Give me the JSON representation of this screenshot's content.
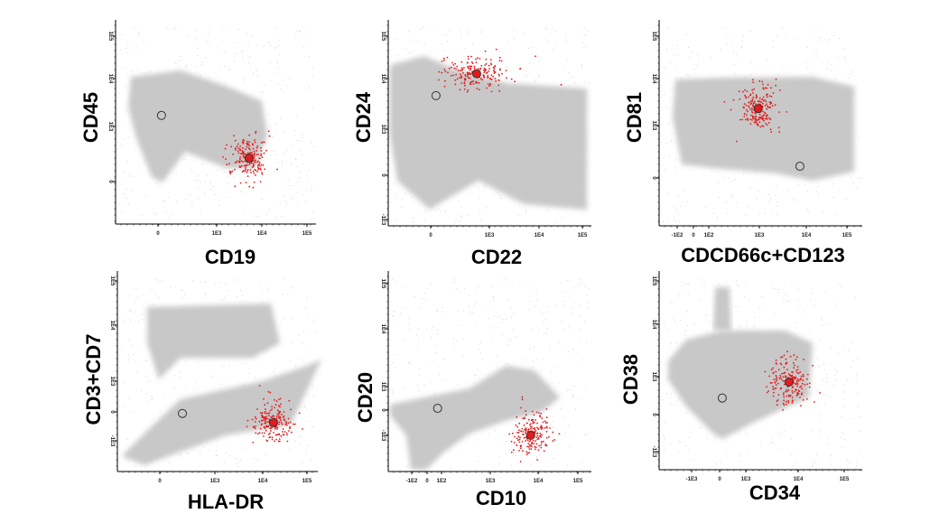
{
  "colors": {
    "background_population": "#c8c8c8",
    "target_population": "#e41a1c",
    "median_marker": "#333333"
  },
  "chart_data": [
    {
      "type": "scatter",
      "xlabel": "CD19",
      "ylabel": "CD45",
      "scale": "logicle",
      "x_ticks": [
        {
          "label": "0",
          "value": 0
        },
        {
          "label": "1E3",
          "value": 1000
        },
        {
          "label": "1E4",
          "value": 10000
        },
        {
          "label": "1E5",
          "value": 100000
        }
      ],
      "y_ticks": [
        {
          "label": "0",
          "value": 0
        },
        {
          "label": "1E3",
          "value": 1000
        },
        {
          "label": "1E4",
          "value": 10000
        },
        {
          "label": "1E5",
          "value": 100000
        }
      ],
      "background_median": {
        "x": 11,
        "y": 1700
      },
      "target_centroid": {
        "x": 5200,
        "y": 115
      }
    },
    {
      "type": "scatter",
      "xlabel": "CD22",
      "ylabel": "CD24",
      "scale": "logicle",
      "x_ticks": [
        {
          "label": "0",
          "value": 0
        },
        {
          "label": "1E3",
          "value": 1000
        },
        {
          "label": "1E4",
          "value": 10000
        },
        {
          "label": "1E5",
          "value": 100000
        }
      ],
      "y_ticks": [
        {
          "label": "-1E3",
          "value": -1000
        },
        {
          "label": "0",
          "value": 0
        },
        {
          "label": "1E3",
          "value": 1000
        },
        {
          "label": "1E4",
          "value": 10000
        },
        {
          "label": "1E5",
          "value": 100000
        }
      ],
      "background_median": {
        "x": 17,
        "y": 4600
      },
      "target_centroid": {
        "x": 450,
        "y": 13000
      }
    },
    {
      "type": "scatter",
      "xlabel": "CDCD66c+CD123",
      "ylabel": "CD81",
      "scale": "logicle",
      "x_ticks": [
        {
          "label": "-1E2",
          "value": -100
        },
        {
          "label": "0",
          "value": 0
        },
        {
          "label": "1E2",
          "value": 100
        },
        {
          "label": "1E3",
          "value": 1000
        },
        {
          "label": "1E4",
          "value": 10000
        },
        {
          "label": "1E5",
          "value": 100000
        }
      ],
      "y_ticks": [
        {
          "label": "0",
          "value": 0
        },
        {
          "label": "1E3",
          "value": 1000
        },
        {
          "label": "1E4",
          "value": 10000
        },
        {
          "label": "1E5",
          "value": 100000
        }
      ],
      "background_median": {
        "x": 7300,
        "y": 46
      },
      "target_centroid": {
        "x": 950,
        "y": 2300
      }
    },
    {
      "type": "scatter",
      "xlabel": "HLA-DR",
      "ylabel": "CD3+CD7",
      "scale": "logicle",
      "x_ticks": [
        {
          "label": "0",
          "value": 0
        },
        {
          "label": "1E3",
          "value": 1000
        },
        {
          "label": "1E4",
          "value": 10000
        },
        {
          "label": "1E5",
          "value": 100000
        }
      ],
      "y_ticks": [
        {
          "label": "-1E3",
          "value": -1000
        },
        {
          "label": "0",
          "value": 0
        },
        {
          "label": "1E3",
          "value": 1000
        },
        {
          "label": "1E4",
          "value": 10000
        },
        {
          "label": "1E5",
          "value": 100000
        }
      ],
      "background_median": {
        "x": 108,
        "y": -10
      },
      "target_centroid": {
        "x": 17500,
        "y": -93
      }
    },
    {
      "type": "scatter",
      "xlabel": "CD10",
      "ylabel": "CD20",
      "scale": "logicle",
      "x_ticks": [
        {
          "label": "-1E2",
          "value": -100
        },
        {
          "label": "0",
          "value": 0
        },
        {
          "label": "1E2",
          "value": 100
        },
        {
          "label": "1E3",
          "value": 1000
        },
        {
          "label": "1E4",
          "value": 10000
        },
        {
          "label": "1E5",
          "value": 100000
        }
      ],
      "y_ticks": [
        {
          "label": "-1E3",
          "value": -1000
        },
        {
          "label": "0",
          "value": 0
        },
        {
          "label": "1E3",
          "value": 1000
        },
        {
          "label": "1E4",
          "value": 10000
        },
        {
          "label": "1E5",
          "value": 100000
        }
      ],
      "background_median": {
        "x": 63,
        "y": 14
      },
      "target_centroid": {
        "x": 7000,
        "y": -1000
      }
    },
    {
      "type": "scatter",
      "xlabel": "CD34",
      "ylabel": "CD38",
      "scale": "logicle",
      "x_ticks": [
        {
          "label": "-1E3",
          "value": -1000
        },
        {
          "label": "0",
          "value": 0
        },
        {
          "label": "1E3",
          "value": 1000
        },
        {
          "label": "1E4",
          "value": 10000
        },
        {
          "label": "1E5",
          "value": 100000
        }
      ],
      "y_ticks": [
        {
          "label": "-1E3",
          "value": -1000
        },
        {
          "label": "0",
          "value": 0
        },
        {
          "label": "1E3",
          "value": 1000
        },
        {
          "label": "1E4",
          "value": 10000
        },
        {
          "label": "1E5",
          "value": 100000
        }
      ],
      "background_median": {
        "x": 19,
        "y": 120
      },
      "target_centroid": {
        "x": 6700,
        "y": 590
      }
    }
  ]
}
